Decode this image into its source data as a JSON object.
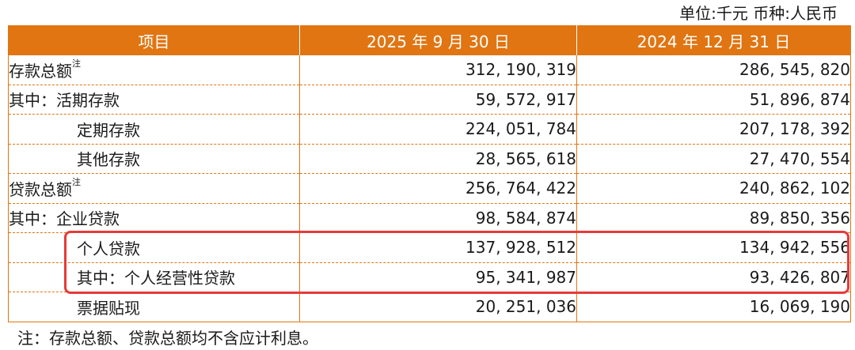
{
  "unit_line": "单位:千元  币种:人民币",
  "table": {
    "headers": [
      "项目",
      "2025 年 9 月 30 日",
      "2024 年 12 月 31 日"
    ],
    "rows": [
      {
        "label": "存款总额",
        "note": "注",
        "v2025": "312, 190, 319",
        "v2024": "286, 545, 820"
      },
      {
        "label": "其中：活期存款",
        "note": "",
        "v2025": "59, 572, 917",
        "v2024": "51, 896, 874"
      },
      {
        "label": "定期存款",
        "note": "",
        "v2025": "224, 051, 784",
        "v2024": "207, 178, 392"
      },
      {
        "label": "其他存款",
        "note": "",
        "v2025": "28, 565, 618",
        "v2024": "27, 470, 554"
      },
      {
        "label": "贷款总额",
        "note": "注",
        "v2025": "256, 764, 422",
        "v2024": "240, 862, 102"
      },
      {
        "label": "其中：企业贷款",
        "note": "",
        "v2025": "98, 584, 874",
        "v2024": "89, 850, 356"
      },
      {
        "label": "个人贷款",
        "note": "",
        "v2025": "137, 928, 512",
        "v2024": "134, 942, 556"
      },
      {
        "label": "其中：个人经营性贷款",
        "note": "",
        "v2025": "95, 341, 987",
        "v2024": "93, 426, 807"
      },
      {
        "label": "票据贴现",
        "note": "",
        "v2025": "20, 251, 036",
        "v2024": "16, 069, 190"
      }
    ]
  },
  "footnote": "注：存款总额、贷款总额均不含应计利息。",
  "colors": {
    "header_bg": "#e07512",
    "highlight_border": "#e63a3a"
  }
}
